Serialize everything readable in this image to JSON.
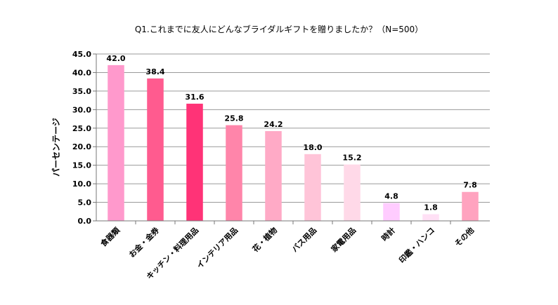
{
  "chart_data": {
    "type": "bar",
    "title": "Q1.これまでに友人にどんなブライダルギフトを贈りましたか？（N=500）",
    "ylabel": "パーセンテージ",
    "xlabel": "",
    "ylim": [
      0,
      45
    ],
    "yticks": [
      "0.0",
      "5.0",
      "10.0",
      "15.0",
      "20.0",
      "25.0",
      "30.0",
      "35.0",
      "40.0",
      "45.0"
    ],
    "grid": true,
    "categories": [
      "食器類",
      "お金・金券",
      "キッチン・料理用品",
      "インテリア用品",
      "花・植物",
      "バス用品",
      "家電用品",
      "時計",
      "印鑑・ハンコ",
      "その他"
    ],
    "values": [
      42.0,
      38.4,
      31.6,
      25.8,
      24.2,
      18.0,
      15.2,
      4.8,
      1.8,
      7.8
    ],
    "data_labels": [
      "42.0",
      "38.4",
      "31.6",
      "25.8",
      "24.2",
      "18.0",
      "15.2",
      "4.8",
      "1.8",
      "7.8"
    ],
    "colors": [
      "#ff99cc",
      "#ff5b8f",
      "#ff3377",
      "#ff85aa",
      "#ffaac6",
      "#ffc4d8",
      "#ffd9e8",
      "#ffccff",
      "#ffe0f5",
      "#ffa3bf"
    ]
  }
}
